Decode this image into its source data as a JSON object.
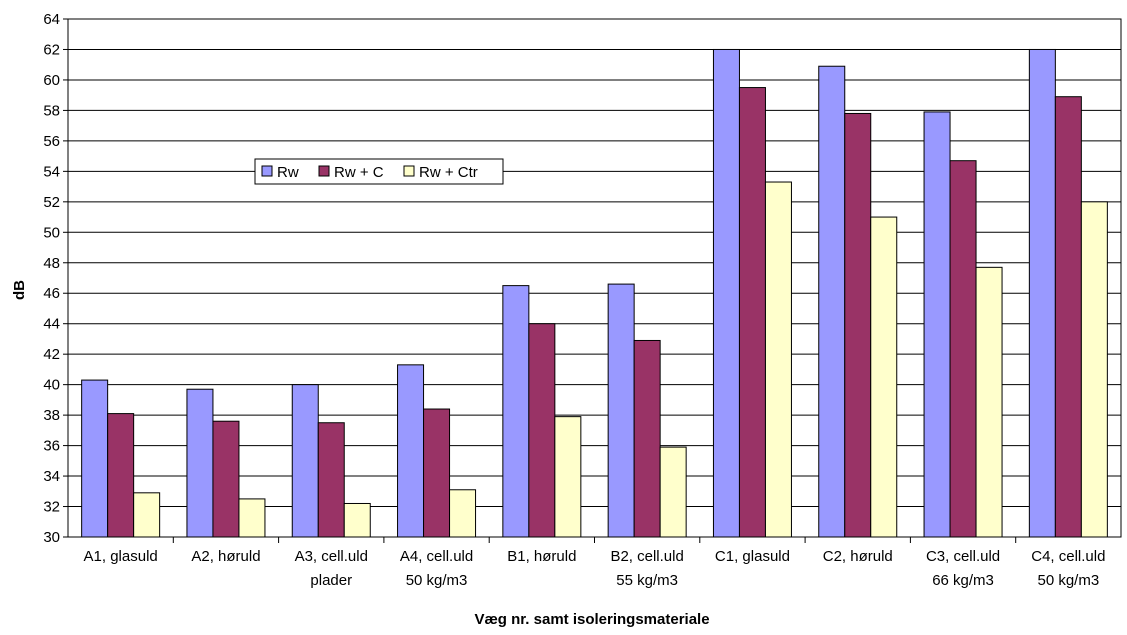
{
  "chart_data": {
    "type": "bar",
    "title": "",
    "xlabel": "Væg nr. samt isoleringsmateriale",
    "ylabel": "dB",
    "ylim": [
      30,
      64
    ],
    "ytick_step": 2,
    "yticks": [
      "30",
      "32",
      "34",
      "36",
      "38",
      "40",
      "42",
      "44",
      "46",
      "48",
      "50",
      "52",
      "54",
      "56",
      "58",
      "60",
      "62",
      "64"
    ],
    "grid": true,
    "legend_position": "upper-left",
    "categories": [
      "A1, glasuld",
      "A2, høruld",
      "A3, cell.uld plader",
      "A4, cell.uld 50 kg/m3",
      "B1, høruld",
      "B2, cell.uld 55 kg/m3",
      "C1, glasuld",
      "C2, høruld",
      "C3, cell.uld 66 kg/m3",
      "C4, cell.uld 50 kg/m3"
    ],
    "category_lines": [
      [
        "A1, glasuld"
      ],
      [
        "A2, høruld"
      ],
      [
        "A3, cell.uld",
        "plader"
      ],
      [
        "A4, cell.uld",
        "50 kg/m3"
      ],
      [
        "B1, høruld"
      ],
      [
        "B2, cell.uld",
        "55 kg/m3"
      ],
      [
        "C1, glasuld"
      ],
      [
        "C2, høruld"
      ],
      [
        "C3, cell.uld",
        "66 kg/m3"
      ],
      [
        "C4, cell.uld",
        "50 kg/m3"
      ]
    ],
    "series": [
      {
        "name": "Rw",
        "color": "#9999FF",
        "values": [
          40.3,
          39.7,
          40.0,
          41.3,
          46.5,
          46.6,
          62.0,
          60.9,
          57.9,
          62.0
        ]
      },
      {
        "name": "Rw + C",
        "color": "#993366",
        "values": [
          38.1,
          37.6,
          37.5,
          38.4,
          44.0,
          42.9,
          59.5,
          57.8,
          54.7,
          58.9
        ]
      },
      {
        "name": "Rw + Ctr",
        "color": "#FFFFCC",
        "values": [
          32.9,
          32.5,
          32.2,
          33.1,
          37.9,
          35.9,
          53.3,
          51.0,
          47.7,
          52.0
        ]
      }
    ]
  }
}
